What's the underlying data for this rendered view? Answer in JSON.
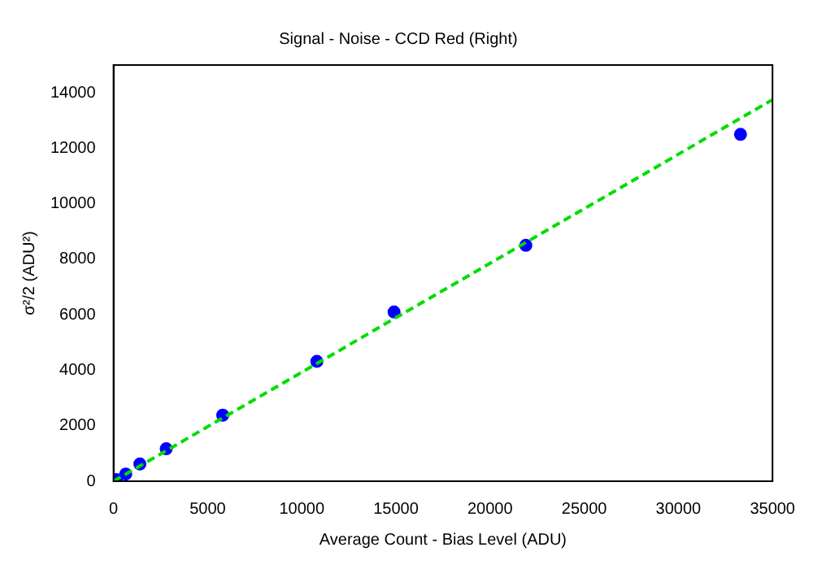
{
  "chart_data": {
    "type": "scatter",
    "title": "Signal - Noise - CCD Red (Right)",
    "xlabel": "Average Count - Bias Level (ADU)",
    "ylabel": "σ²/2 (ADU²)",
    "xlim": [
      0,
      35000
    ],
    "xticks": [
      0,
      5000,
      10000,
      15000,
      20000,
      25000,
      30000,
      35000
    ],
    "ylim": [
      0,
      15000
    ],
    "yticks": [
      0,
      2000,
      4000,
      6000,
      8000,
      10000,
      12000,
      14000
    ],
    "grid": false,
    "legend": false,
    "marker": "circle",
    "series": [
      {
        "type": "scatter",
        "color": "#0000ff",
        "x": [
          150,
          650,
          1400,
          2800,
          5800,
          10800,
          14900,
          21900,
          33300
        ],
        "values": [
          60,
          260,
          620,
          1170,
          2380,
          4320,
          6100,
          8500,
          12500
        ]
      },
      {
        "type": "line",
        "color": "#00dd00",
        "line_style": "dashed",
        "marker": "none",
        "x": [
          0,
          35000
        ],
        "values": [
          0,
          13750
        ]
      }
    ]
  }
}
